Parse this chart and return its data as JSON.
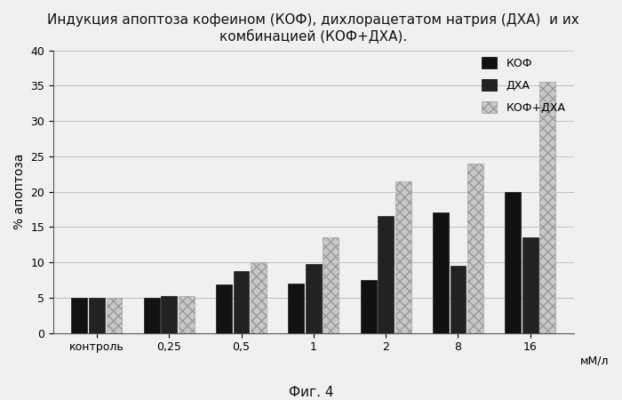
{
  "title_line1": "Индукция апоптоза кофеином (КОФ), дихлорацетатом натрия (ДХА)  и их",
  "title_line2": "комбинацией (КОФ+ДХА).",
  "xlabel": "мМ/л",
  "ylabel": "% апоптоза",
  "categories": [
    "контроль",
    "0,25",
    "0,5",
    "1",
    "2",
    "8",
    "16"
  ],
  "series": {
    "КОФ": [
      5.0,
      5.0,
      6.8,
      7.0,
      7.5,
      17.0,
      20.0
    ],
    "ДХА": [
      5.0,
      5.2,
      8.7,
      9.8,
      16.5,
      9.5,
      13.5
    ],
    "КОФ+ДХА": [
      5.0,
      5.2,
      10.0,
      13.5,
      21.5,
      24.0,
      35.5
    ]
  },
  "colors": {
    "КОФ": "#111111",
    "ДХА": "#222222",
    "КОФ+ДХА": "#c8c8c8"
  },
  "ylim": [
    0,
    40
  ],
  "yticks": [
    0,
    5,
    10,
    15,
    20,
    25,
    30,
    35,
    40
  ],
  "caption": "Фиг. 4",
  "background_color": "#f0f0f0",
  "plot_bg": "#f0f0f0"
}
